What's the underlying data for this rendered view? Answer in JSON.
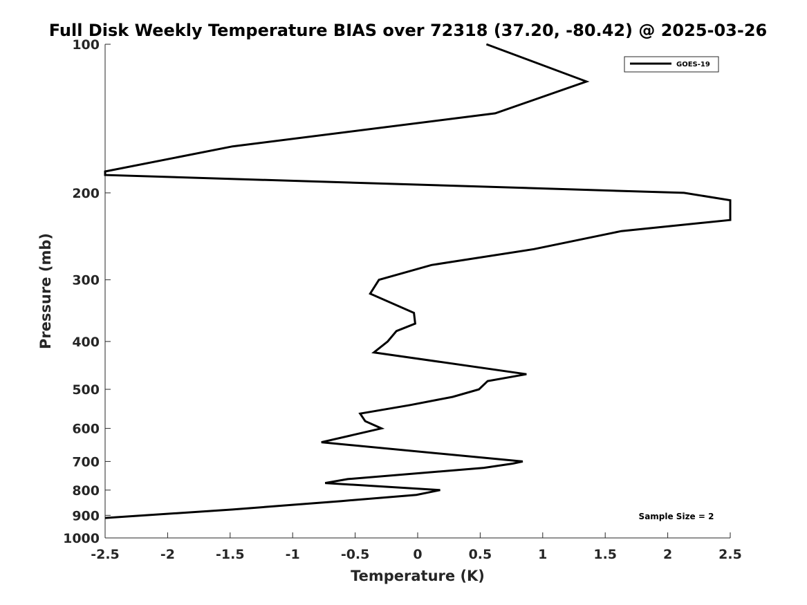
{
  "chart_data": {
    "type": "line",
    "title": "Full Disk Weekly Temperature BIAS over 72318 (37.20, -80.42) @ 2025-03-26",
    "xlabel": "Temperature (K)",
    "ylabel": "Pressure (mb)",
    "xlim": [
      -2.5,
      2.5
    ],
    "ylim": [
      100,
      1000
    ],
    "y_scale": "log",
    "y_reversed": true,
    "x_ticks": [
      -2.5,
      -2,
      -1.5,
      -1,
      -0.5,
      0,
      0.5,
      1,
      1.5,
      2,
      2.5
    ],
    "x_tick_labels": [
      "-2.5",
      "-2",
      "-1.5",
      "-1",
      "-0.5",
      "0",
      "0.5",
      "1",
      "1.5",
      "2",
      "2.5"
    ],
    "y_ticks": [
      100,
      200,
      300,
      400,
      500,
      600,
      700,
      800,
      900,
      1000
    ],
    "y_tick_labels": [
      "100",
      "200",
      "300",
      "400",
      "500",
      "600",
      "700",
      "800",
      "900",
      "1000"
    ],
    "grid": false,
    "legend": {
      "placement": "top-right",
      "entries": [
        "GOES-19"
      ]
    },
    "annotation": "Sample Size = 2",
    "series": [
      {
        "name": "GOES-19",
        "color": "#000000",
        "points": [
          {
            "x": 0.55,
            "y": 100
          },
          {
            "x": 1.35,
            "y": 119
          },
          {
            "x": 0.62,
            "y": 138
          },
          {
            "x": -1.48,
            "y": 161
          },
          {
            "x": -2.5,
            "y": 181
          },
          {
            "x": -2.5,
            "y": 184
          },
          {
            "x": 2.13,
            "y": 200
          },
          {
            "x": 2.5,
            "y": 207
          },
          {
            "x": 2.5,
            "y": 227
          },
          {
            "x": 1.63,
            "y": 239
          },
          {
            "x": 0.93,
            "y": 260
          },
          {
            "x": 0.11,
            "y": 280
          },
          {
            "x": -0.31,
            "y": 300
          },
          {
            "x": -0.38,
            "y": 320
          },
          {
            "x": -0.03,
            "y": 350
          },
          {
            "x": -0.02,
            "y": 368
          },
          {
            "x": -0.17,
            "y": 381
          },
          {
            "x": -0.24,
            "y": 400
          },
          {
            "x": -0.35,
            "y": 421
          },
          {
            "x": 0.87,
            "y": 466
          },
          {
            "x": 0.56,
            "y": 481
          },
          {
            "x": 0.49,
            "y": 500
          },
          {
            "x": 0.28,
            "y": 518
          },
          {
            "x": -0.06,
            "y": 538
          },
          {
            "x": -0.46,
            "y": 560
          },
          {
            "x": -0.42,
            "y": 580
          },
          {
            "x": -0.29,
            "y": 600
          },
          {
            "x": -0.77,
            "y": 640
          },
          {
            "x": 0.84,
            "y": 700
          },
          {
            "x": 0.76,
            "y": 707
          },
          {
            "x": 0.53,
            "y": 721
          },
          {
            "x": -0.56,
            "y": 760
          },
          {
            "x": -0.74,
            "y": 774
          },
          {
            "x": 0.18,
            "y": 800
          },
          {
            "x": -0.01,
            "y": 818
          },
          {
            "x": -0.61,
            "y": 842
          },
          {
            "x": -1.0,
            "y": 857
          },
          {
            "x": -1.48,
            "y": 876
          },
          {
            "x": -2.5,
            "y": 911
          }
        ]
      }
    ]
  }
}
